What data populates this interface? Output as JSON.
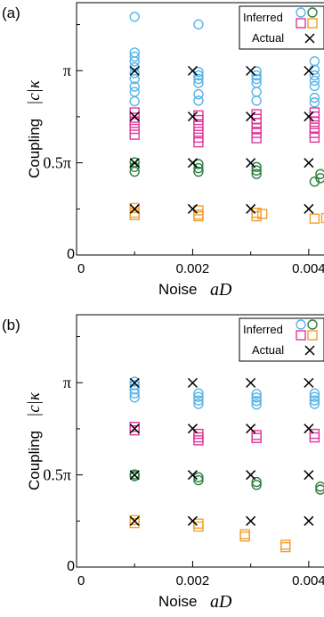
{
  "colors": {
    "blue": "#5ab4e6",
    "magenta": "#e0359a",
    "green": "#2e7d3e",
    "orange": "#f0a030",
    "actual": "#000000"
  },
  "chart_data": [
    {
      "type": "scatter",
      "panel_label": "(a)",
      "xlabel_text": "Noise",
      "xlabel_symbol": "aD",
      "ylabel_text": "Coupling",
      "ylabel_symbol": "|c|κ",
      "xlim": [
        0,
        0.0046
      ],
      "ylim": [
        0,
        4.3
      ],
      "xticks": [
        {
          "value": 0,
          "label": "0"
        },
        {
          "value": 0.002,
          "label": "0.002"
        },
        {
          "value": 0.004,
          "label": "0.004"
        }
      ],
      "yticks": [
        {
          "value": 0,
          "label": "0"
        },
        {
          "value": 1.5708,
          "label": "0.5π"
        },
        {
          "value": 3.1416,
          "label": "π"
        }
      ],
      "legend": {
        "inferred_label": "Inferred",
        "actual_label": "Actual",
        "placement": "top-right"
      },
      "actual": [
        {
          "x": 0.001,
          "y": 3.14
        },
        {
          "x": 0.002,
          "y": 3.14
        },
        {
          "x": 0.003,
          "y": 3.14
        },
        {
          "x": 0.004,
          "y": 3.14
        },
        {
          "x": 0.001,
          "y": 2.36
        },
        {
          "x": 0.002,
          "y": 2.36
        },
        {
          "x": 0.003,
          "y": 2.36
        },
        {
          "x": 0.004,
          "y": 2.36
        },
        {
          "x": 0.001,
          "y": 1.57
        },
        {
          "x": 0.002,
          "y": 1.57
        },
        {
          "x": 0.003,
          "y": 1.57
        },
        {
          "x": 0.004,
          "y": 1.57
        },
        {
          "x": 0.001,
          "y": 0.785
        },
        {
          "x": 0.002,
          "y": 0.785
        },
        {
          "x": 0.003,
          "y": 0.785
        },
        {
          "x": 0.004,
          "y": 0.785
        }
      ],
      "inferred": [
        {
          "color": "blue",
          "marker": "circle",
          "points": [
            {
              "x": 0.001,
              "y": 4.06
            },
            {
              "x": 0.001,
              "y": 3.45
            },
            {
              "x": 0.001,
              "y": 3.38
            },
            {
              "x": 0.001,
              "y": 3.3
            },
            {
              "x": 0.001,
              "y": 3.2
            },
            {
              "x": 0.001,
              "y": 3.1
            },
            {
              "x": 0.001,
              "y": 3.0
            },
            {
              "x": 0.001,
              "y": 2.87
            },
            {
              "x": 0.001,
              "y": 2.78
            },
            {
              "x": 0.001,
              "y": 2.62
            },
            {
              "x": 0.0021,
              "y": 3.93
            },
            {
              "x": 0.0021,
              "y": 3.12
            },
            {
              "x": 0.0021,
              "y": 3.06
            },
            {
              "x": 0.0021,
              "y": 3.0
            },
            {
              "x": 0.0021,
              "y": 2.93
            },
            {
              "x": 0.0021,
              "y": 2.74
            },
            {
              "x": 0.0021,
              "y": 2.63
            },
            {
              "x": 0.0031,
              "y": 3.13
            },
            {
              "x": 0.0031,
              "y": 3.06
            },
            {
              "x": 0.0031,
              "y": 3.0
            },
            {
              "x": 0.0031,
              "y": 2.93
            },
            {
              "x": 0.0031,
              "y": 2.78
            },
            {
              "x": 0.0031,
              "y": 2.63
            },
            {
              "x": 0.0041,
              "y": 3.3
            },
            {
              "x": 0.0041,
              "y": 3.16
            },
            {
              "x": 0.0041,
              "y": 3.06
            },
            {
              "x": 0.0041,
              "y": 2.97
            },
            {
              "x": 0.0041,
              "y": 2.88
            },
            {
              "x": 0.0041,
              "y": 2.68
            },
            {
              "x": 0.0041,
              "y": 2.6
            }
          ]
        },
        {
          "color": "magenta",
          "marker": "square",
          "points": [
            {
              "x": 0.001,
              "y": 2.43
            },
            {
              "x": 0.001,
              "y": 2.34
            },
            {
              "x": 0.001,
              "y": 2.25
            },
            {
              "x": 0.001,
              "y": 2.15
            },
            {
              "x": 0.001,
              "y": 2.05
            },
            {
              "x": 0.0021,
              "y": 2.38
            },
            {
              "x": 0.0021,
              "y": 2.3
            },
            {
              "x": 0.0021,
              "y": 2.2
            },
            {
              "x": 0.0021,
              "y": 2.1
            },
            {
              "x": 0.0021,
              "y": 2.0
            },
            {
              "x": 0.0021,
              "y": 1.92
            },
            {
              "x": 0.0031,
              "y": 2.4
            },
            {
              "x": 0.0031,
              "y": 2.32
            },
            {
              "x": 0.0031,
              "y": 2.25
            },
            {
              "x": 0.0031,
              "y": 2.16
            },
            {
              "x": 0.0031,
              "y": 2.08
            },
            {
              "x": 0.0031,
              "y": 1.99
            },
            {
              "x": 0.0041,
              "y": 2.43
            },
            {
              "x": 0.0041,
              "y": 2.36
            },
            {
              "x": 0.0041,
              "y": 2.27
            },
            {
              "x": 0.0041,
              "y": 2.17
            },
            {
              "x": 0.0041,
              "y": 2.08
            },
            {
              "x": 0.0041,
              "y": 2.0
            }
          ]
        },
        {
          "color": "green",
          "marker": "circle",
          "points": [
            {
              "x": 0.001,
              "y": 1.58
            },
            {
              "x": 0.001,
              "y": 1.5
            },
            {
              "x": 0.001,
              "y": 1.42
            },
            {
              "x": 0.0021,
              "y": 1.55
            },
            {
              "x": 0.0021,
              "y": 1.48
            },
            {
              "x": 0.0021,
              "y": 1.42
            },
            {
              "x": 0.0031,
              "y": 1.5
            },
            {
              "x": 0.0031,
              "y": 1.44
            },
            {
              "x": 0.0031,
              "y": 1.38
            },
            {
              "x": 0.0042,
              "y": 1.38
            },
            {
              "x": 0.0042,
              "y": 1.31
            },
            {
              "x": 0.0041,
              "y": 1.25
            }
          ]
        },
        {
          "color": "orange",
          "marker": "square",
          "points": [
            {
              "x": 0.001,
              "y": 0.8
            },
            {
              "x": 0.001,
              "y": 0.72
            },
            {
              "x": 0.001,
              "y": 0.68
            },
            {
              "x": 0.0021,
              "y": 0.76
            },
            {
              "x": 0.0021,
              "y": 0.69
            },
            {
              "x": 0.0021,
              "y": 0.66
            },
            {
              "x": 0.0031,
              "y": 0.72
            },
            {
              "x": 0.0031,
              "y": 0.66
            },
            {
              "x": 0.0032,
              "y": 0.7
            },
            {
              "x": 0.0041,
              "y": 0.62
            },
            {
              "x": 0.0043,
              "y": 0.63
            },
            {
              "x": 0.0044,
              "y": 0.64
            }
          ]
        }
      ]
    },
    {
      "type": "scatter",
      "panel_label": "(b)",
      "xlabel_text": "Noise",
      "xlabel_symbol": "aD",
      "ylabel_text": "Coupling",
      "ylabel_symbol": "|c|κ",
      "xlim": [
        0,
        0.0046
      ],
      "ylim": [
        0,
        4.3
      ],
      "xticks": [
        {
          "value": 0,
          "label": "0"
        },
        {
          "value": 0.002,
          "label": "0.002"
        },
        {
          "value": 0.004,
          "label": "0.004"
        }
      ],
      "yticks": [
        {
          "value": 0,
          "label": "0"
        },
        {
          "value": 1.5708,
          "label": "0.5π"
        },
        {
          "value": 3.1416,
          "label": "π"
        }
      ],
      "legend": {
        "inferred_label": "Inferred",
        "actual_label": "Actual",
        "placement": "top-right"
      },
      "actual": [
        {
          "x": 0.001,
          "y": 3.14
        },
        {
          "x": 0.002,
          "y": 3.14
        },
        {
          "x": 0.003,
          "y": 3.14
        },
        {
          "x": 0.004,
          "y": 3.14
        },
        {
          "x": 0.001,
          "y": 2.36
        },
        {
          "x": 0.002,
          "y": 2.36
        },
        {
          "x": 0.003,
          "y": 2.36
        },
        {
          "x": 0.004,
          "y": 2.36
        },
        {
          "x": 0.001,
          "y": 1.57
        },
        {
          "x": 0.002,
          "y": 1.57
        },
        {
          "x": 0.003,
          "y": 1.57
        },
        {
          "x": 0.004,
          "y": 1.57
        },
        {
          "x": 0.001,
          "y": 0.785
        },
        {
          "x": 0.002,
          "y": 0.785
        },
        {
          "x": 0.003,
          "y": 0.785
        },
        {
          "x": 0.004,
          "y": 0.785
        }
      ],
      "inferred": [
        {
          "color": "blue",
          "marker": "circle",
          "points": [
            {
              "x": 0.001,
              "y": 3.16
            },
            {
              "x": 0.001,
              "y": 3.1
            },
            {
              "x": 0.001,
              "y": 3.03
            },
            {
              "x": 0.001,
              "y": 2.96
            },
            {
              "x": 0.001,
              "y": 2.89
            },
            {
              "x": 0.0021,
              "y": 2.96
            },
            {
              "x": 0.0021,
              "y": 2.9
            },
            {
              "x": 0.0021,
              "y": 2.84
            },
            {
              "x": 0.0021,
              "y": 2.78
            },
            {
              "x": 0.0031,
              "y": 2.95
            },
            {
              "x": 0.0031,
              "y": 2.89
            },
            {
              "x": 0.0031,
              "y": 2.83
            },
            {
              "x": 0.0031,
              "y": 2.77
            },
            {
              "x": 0.0041,
              "y": 2.96
            },
            {
              "x": 0.0041,
              "y": 2.9
            },
            {
              "x": 0.0041,
              "y": 2.84
            },
            {
              "x": 0.0041,
              "y": 2.78
            }
          ]
        },
        {
          "color": "magenta",
          "marker": "square",
          "points": [
            {
              "x": 0.001,
              "y": 2.39
            },
            {
              "x": 0.001,
              "y": 2.33
            },
            {
              "x": 0.0021,
              "y": 2.27
            },
            {
              "x": 0.0021,
              "y": 2.21
            },
            {
              "x": 0.0021,
              "y": 2.16
            },
            {
              "x": 0.0031,
              "y": 2.25
            },
            {
              "x": 0.0031,
              "y": 2.2
            },
            {
              "x": 0.0041,
              "y": 2.27
            },
            {
              "x": 0.0041,
              "y": 2.21
            }
          ]
        },
        {
          "color": "green",
          "marker": "circle",
          "points": [
            {
              "x": 0.001,
              "y": 1.58
            },
            {
              "x": 0.001,
              "y": 1.55
            },
            {
              "x": 0.0021,
              "y": 1.53
            },
            {
              "x": 0.0021,
              "y": 1.48
            },
            {
              "x": 0.0031,
              "y": 1.45
            },
            {
              "x": 0.0031,
              "y": 1.4
            },
            {
              "x": 0.0042,
              "y": 1.37
            },
            {
              "x": 0.0042,
              "y": 1.32
            }
          ]
        },
        {
          "color": "orange",
          "marker": "square",
          "points": [
            {
              "x": 0.001,
              "y": 0.8
            },
            {
              "x": 0.001,
              "y": 0.75
            },
            {
              "x": 0.0021,
              "y": 0.74
            },
            {
              "x": 0.0021,
              "y": 0.69
            },
            {
              "x": 0.0029,
              "y": 0.56
            },
            {
              "x": 0.0029,
              "y": 0.52
            },
            {
              "x": 0.0036,
              "y": 0.38
            },
            {
              "x": 0.0036,
              "y": 0.34
            }
          ]
        }
      ]
    }
  ]
}
